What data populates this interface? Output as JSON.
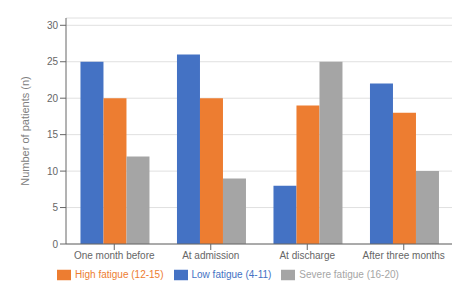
{
  "chart_data": {
    "type": "bar",
    "categories": [
      "One month before",
      "At admission",
      "At discharge",
      "After three months"
    ],
    "series": [
      {
        "name": "Low fatigue (4-11)",
        "color": "#4472C4",
        "values": [
          25,
          26,
          8,
          22
        ]
      },
      {
        "name": "High fatigue (12-15)",
        "color": "#ED7D31",
        "values": [
          20,
          20,
          19,
          18
        ]
      },
      {
        "name": "Severe fatigue (16-20)",
        "color": "#A5A5A5",
        "values": [
          12,
          9,
          25,
          10
        ]
      }
    ],
    "ylabel": "Number of patients (n)",
    "ylim": [
      0,
      31
    ],
    "yticks": [
      0,
      5,
      10,
      15,
      20,
      25,
      30
    ],
    "grid": true,
    "legend": "bottom"
  }
}
